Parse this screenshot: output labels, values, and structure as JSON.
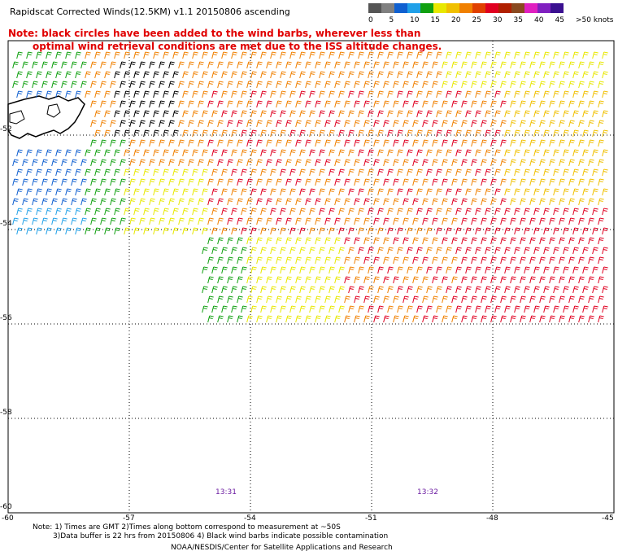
{
  "title": "Rapidscat Corrected Winds(12.5KM) v1.1 20150806 ascending",
  "note": {
    "line1": "Note: black circles have been added to the wind barbs, wherever less than",
    "line2": "optimal wind retrieval conditions are met due to the ISS altitude changes."
  },
  "legend": {
    "labels": [
      "0",
      "5",
      "10",
      "15",
      "20",
      "25",
      "30",
      "35",
      "40",
      "45",
      ">50 knots"
    ],
    "colors": [
      "#555555",
      "#808080",
      "#1060d0",
      "#20a0e8",
      "#10a010",
      "#e8e800",
      "#f0c000",
      "#f08000",
      "#e04000",
      "#e00020",
      "#b02000",
      "#8a4a20",
      "#e020c0",
      "#8020c0",
      "#3a1090"
    ]
  },
  "map": {
    "lon_ticks": [
      "-60",
      "-57",
      "-54",
      "-51",
      "-48",
      "-45"
    ],
    "lat_ticks": [
      "-52",
      "-54",
      "-56",
      "-58",
      "-60"
    ],
    "lon_range": [
      -60,
      -45
    ],
    "lat_range": [
      -60,
      -50
    ],
    "times": [
      "13:31",
      "13:32"
    ]
  },
  "footer": {
    "line1": "Note: 1) Times are GMT 2)Times along bottom correspond to measurement at ~50S",
    "line2": "3)Data buffer is 22 hrs from 20150806 4) Black wind barbs indicate possible contamination",
    "line3": "NOAA/NESDIS/Center for Satellite Applications and Research"
  }
}
